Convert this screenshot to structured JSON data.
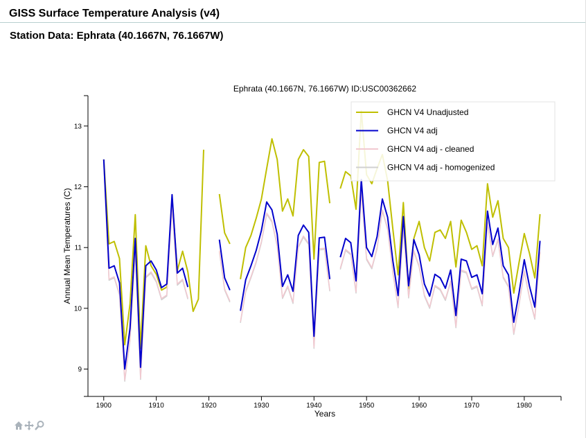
{
  "header": {
    "app_title": "GISS Surface Temperature Analysis (v4)",
    "station_title": "Station Data: Ephrata (40.1667N, 76.1667W)"
  },
  "toolbar": {
    "icons": [
      "home-icon",
      "pan-icon",
      "zoom-icon"
    ]
  },
  "colors": {
    "unadjusted": "#bfbf00",
    "adj": "#0000cc",
    "cleaned": "#f2c9d0",
    "homogenized": "#d0d0d0"
  },
  "chart_data": {
    "type": "line",
    "title": "Ephrata (40.1667N, 76.1667W) ID:USC00362662",
    "xlabel": "Years",
    "ylabel": "Annual Mean Temperatures (C)",
    "xlim": [
      1897,
      1987
    ],
    "ylim": [
      8.55,
      13.5
    ],
    "xticks": [
      1900,
      1910,
      1920,
      1930,
      1940,
      1950,
      1960,
      1970,
      1980
    ],
    "yticks": [
      9,
      10,
      11,
      12,
      13
    ],
    "grid": false,
    "legend_position": "top-right",
    "series": [
      {
        "name": "GHCN V4 Unadjusted",
        "color": "#bfbf00",
        "x": [
          1900,
          1901,
          1902,
          1903,
          1904,
          1905,
          1906,
          1907,
          1908,
          1909,
          1910,
          1911,
          1912,
          1913,
          1914,
          1915,
          1916,
          1917,
          1918,
          1919,
          1920,
          1921,
          1922,
          1923,
          1924,
          1925,
          1926,
          1927,
          1928,
          1929,
          1930,
          1931,
          1932,
          1933,
          1934,
          1935,
          1936,
          1937,
          1938,
          1939,
          1940,
          1941,
          1942,
          1943,
          1944,
          1945,
          1946,
          1947,
          1948,
          1949,
          1950,
          1951,
          1952,
          1953,
          1954,
          1955,
          1956,
          1957,
          1958,
          1959,
          1960,
          1961,
          1962,
          1963,
          1964,
          1965,
          1966,
          1967,
          1968,
          1969,
          1970,
          1971,
          1972,
          1973,
          1974,
          1975,
          1976,
          1977,
          1978,
          1979,
          1980,
          1981,
          1982,
          1983
        ],
        "y": [
          12.45,
          11.06,
          11.1,
          10.82,
          9.4,
          10.07,
          11.54,
          9.34,
          11.03,
          10.7,
          10.56,
          10.3,
          10.35,
          11.82,
          10.62,
          10.94,
          10.6,
          9.95,
          10.15,
          12.61,
          null,
          null,
          11.88,
          11.24,
          11.06,
          null,
          10.48,
          11.0,
          11.2,
          11.48,
          11.8,
          12.3,
          12.79,
          12.45,
          11.6,
          11.8,
          11.52,
          12.45,
          12.61,
          12.5,
          10.81,
          12.4,
          12.42,
          11.73,
          null,
          11.97,
          12.25,
          12.18,
          11.63,
          13.25,
          12.2,
          12.05,
          12.3,
          12.53,
          12.1,
          11.3,
          10.55,
          11.74,
          10.32,
          11.15,
          11.43,
          11.0,
          10.78,
          11.25,
          11.29,
          11.15,
          11.43,
          10.68,
          11.45,
          11.25,
          10.97,
          11.03,
          10.7,
          12.05,
          11.5,
          11.77,
          11.15,
          11.0,
          10.25,
          10.75,
          11.23,
          10.9,
          10.5,
          11.55
        ]
      },
      {
        "name": "GHCN V4 adj",
        "color": "#0000cc",
        "x": [
          1900,
          1901,
          1902,
          1903,
          1904,
          1905,
          1906,
          1907,
          1908,
          1909,
          1910,
          1911,
          1912,
          1913,
          1914,
          1915,
          1916,
          1917,
          1918,
          1919,
          1920,
          1921,
          1922,
          1923,
          1924,
          1925,
          1926,
          1927,
          1928,
          1929,
          1930,
          1931,
          1932,
          1933,
          1934,
          1935,
          1936,
          1937,
          1938,
          1939,
          1940,
          1941,
          1942,
          1943,
          1944,
          1945,
          1946,
          1947,
          1948,
          1949,
          1950,
          1951,
          1952,
          1953,
          1954,
          1955,
          1956,
          1957,
          1958,
          1959,
          1960,
          1961,
          1962,
          1963,
          1964,
          1965,
          1966,
          1967,
          1968,
          1969,
          1970,
          1971,
          1972,
          1973,
          1974,
          1975,
          1976,
          1977,
          1978,
          1979,
          1980,
          1981,
          1982,
          1983
        ],
        "y": [
          12.45,
          10.66,
          10.7,
          10.42,
          9.0,
          9.67,
          11.15,
          9.03,
          10.7,
          10.78,
          10.63,
          10.34,
          10.4,
          11.87,
          10.58,
          10.66,
          10.35,
          null,
          null,
          null,
          null,
          null,
          11.13,
          10.5,
          10.3,
          null,
          9.96,
          10.47,
          10.7,
          10.95,
          11.28,
          11.75,
          11.62,
          11.22,
          10.36,
          10.55,
          10.28,
          11.2,
          11.37,
          11.25,
          9.54,
          11.16,
          11.17,
          10.48,
          null,
          10.84,
          11.15,
          11.08,
          10.45,
          12.12,
          11.0,
          10.85,
          11.18,
          11.8,
          11.5,
          10.78,
          10.21,
          11.51,
          10.37,
          11.13,
          10.88,
          10.4,
          10.2,
          10.56,
          10.5,
          10.33,
          10.63,
          9.88,
          10.81,
          10.78,
          10.51,
          10.55,
          10.24,
          11.6,
          11.05,
          11.32,
          10.7,
          10.55,
          9.77,
          10.25,
          10.8,
          10.36,
          10.02,
          11.11
        ]
      },
      {
        "name": "GHCN V4 adj - cleaned",
        "color": "#f2c9d0",
        "x": [
          1900,
          1901,
          1902,
          1903,
          1904,
          1905,
          1906,
          1907,
          1908,
          1909,
          1910,
          1911,
          1912,
          1913,
          1914,
          1915,
          1916,
          1917,
          1918,
          1919,
          1920,
          1921,
          1922,
          1923,
          1924,
          1925,
          1926,
          1927,
          1928,
          1929,
          1930,
          1931,
          1932,
          1933,
          1934,
          1935,
          1936,
          1937,
          1938,
          1939,
          1940,
          1941,
          1942,
          1943,
          1944,
          1945,
          1946,
          1947,
          1948,
          1949,
          1950,
          1951,
          1952,
          1953,
          1954,
          1955,
          1956,
          1957,
          1958,
          1959,
          1960,
          1961,
          1962,
          1963,
          1964,
          1965,
          1966,
          1967,
          1968,
          1969,
          1970,
          1971,
          1972,
          1973,
          1974,
          1975,
          1976,
          1977,
          1978,
          1979,
          1980,
          1981,
          1982,
          1983
        ],
        "y": [
          12.4,
          10.48,
          10.52,
          10.24,
          8.82,
          9.49,
          10.97,
          8.85,
          10.52,
          10.6,
          10.45,
          10.16,
          10.22,
          11.69,
          10.4,
          10.48,
          10.17,
          null,
          null,
          null,
          null,
          null,
          10.95,
          10.32,
          10.12,
          null,
          9.78,
          10.29,
          10.52,
          10.77,
          11.1,
          11.57,
          11.44,
          11.04,
          10.18,
          10.37,
          10.1,
          11.02,
          11.19,
          11.07,
          9.36,
          10.98,
          10.99,
          10.3,
          null,
          10.66,
          10.97,
          10.9,
          10.27,
          11.94,
          10.82,
          10.67,
          11.0,
          11.62,
          11.32,
          10.6,
          10.03,
          11.33,
          10.19,
          10.95,
          10.7,
          10.22,
          10.02,
          10.38,
          10.32,
          10.15,
          10.45,
          9.7,
          10.63,
          10.6,
          10.33,
          10.37,
          10.06,
          11.42,
          10.87,
          11.14,
          10.52,
          10.37,
          9.59,
          10.07,
          10.62,
          10.18,
          9.84,
          10.93
        ]
      },
      {
        "name": "GHCN V4 adj - homogenized",
        "color": "#d0d0d0",
        "x": [
          1900,
          1901,
          1902,
          1903,
          1904,
          1905,
          1906,
          1907,
          1908,
          1909,
          1910,
          1911,
          1912,
          1913,
          1914,
          1915,
          1916,
          1917,
          1918,
          1919,
          1920,
          1921,
          1922,
          1923,
          1924,
          1925,
          1926,
          1927,
          1928,
          1929,
          1930,
          1931,
          1932,
          1933,
          1934,
          1935,
          1936,
          1937,
          1938,
          1939,
          1940,
          1941,
          1942,
          1943,
          1944,
          1945,
          1946,
          1947,
          1948,
          1949,
          1950,
          1951,
          1952,
          1953,
          1954,
          1955,
          1956,
          1957,
          1958,
          1959,
          1960,
          1961,
          1962,
          1963,
          1964,
          1965,
          1966,
          1967,
          1968,
          1969,
          1970,
          1971,
          1972,
          1973,
          1974,
          1975,
          1976,
          1977,
          1978,
          1979,
          1980,
          1981,
          1982,
          1983
        ],
        "y": [
          12.38,
          10.46,
          10.5,
          10.22,
          8.8,
          9.47,
          10.95,
          8.83,
          10.5,
          10.58,
          10.43,
          10.14,
          10.2,
          11.67,
          10.38,
          10.46,
          10.15,
          null,
          null,
          null,
          null,
          null,
          10.93,
          10.3,
          10.1,
          null,
          9.76,
          10.27,
          10.5,
          10.75,
          11.08,
          11.55,
          11.42,
          11.02,
          10.16,
          10.35,
          10.08,
          11.0,
          11.17,
          11.05,
          9.34,
          10.96,
          10.97,
          10.28,
          null,
          10.64,
          10.95,
          10.88,
          10.25,
          11.92,
          10.8,
          10.65,
          10.98,
          11.6,
          11.3,
          10.58,
          10.01,
          11.31,
          10.17,
          10.93,
          10.68,
          10.2,
          10.0,
          10.36,
          10.3,
          10.13,
          10.43,
          9.68,
          10.61,
          10.58,
          10.31,
          10.35,
          10.04,
          11.4,
          10.85,
          11.12,
          10.5,
          10.35,
          9.57,
          10.05,
          10.6,
          10.16,
          9.82,
          10.91
        ]
      }
    ]
  }
}
